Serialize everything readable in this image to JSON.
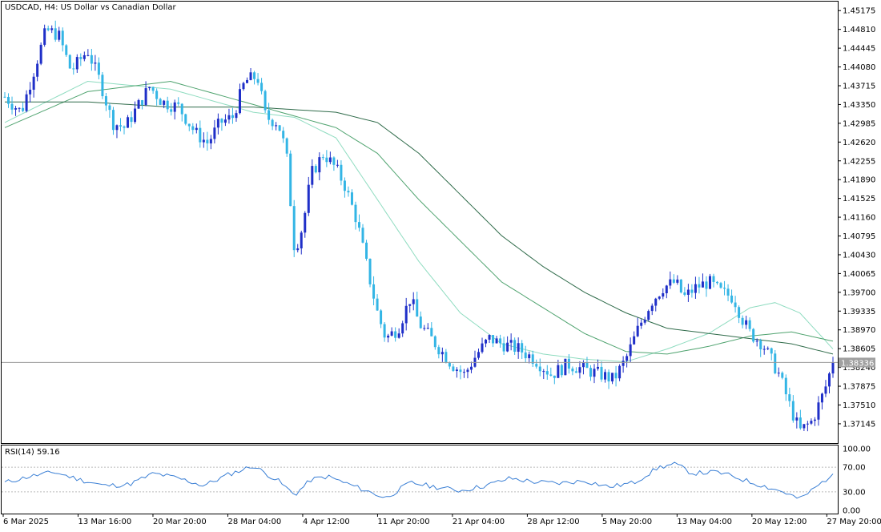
{
  "chart_data": {
    "type": "candlestick",
    "title": "USDCAD, H4:  US Dollar vs Canadian Dollar",
    "symbol": "USDCAD",
    "timeframe": "H4",
    "price_axis": {
      "ylim": [
        1.3677,
        1.4535
      ],
      "ticks": [
        "1.45175",
        "1.44810",
        "1.44445",
        "1.44080",
        "1.43715",
        "1.43350",
        "1.42985",
        "1.42620",
        "1.42255",
        "1.41890",
        "1.41525",
        "1.41160",
        "1.40795",
        "1.40430",
        "1.40065",
        "1.39700",
        "1.39335",
        "1.38970",
        "1.38605",
        "1.38240",
        "1.37875",
        "1.37510",
        "1.37145"
      ],
      "current_price": 1.38336,
      "current_price_label": "1.38336"
    },
    "time_axis": {
      "labels": [
        "6 Mar 2025",
        "13 Mar 16:00",
        "20 Mar 20:00",
        "28 Mar 04:00",
        "4 Apr 12:00",
        "11 Apr 20:00",
        "21 Apr 04:00",
        "28 Apr 12:00",
        "5 May 20:00",
        "13 May 04:00",
        "20 May 12:00",
        "27 May 20:00"
      ]
    },
    "price_series": [
      {
        "t": 0,
        "p": 1.435
      },
      {
        "t": 0.02,
        "p": 1.432
      },
      {
        "t": 0.035,
        "p": 1.44
      },
      {
        "t": 0.05,
        "p": 1.448
      },
      {
        "t": 0.065,
        "p": 1.447
      },
      {
        "t": 0.08,
        "p": 1.44
      },
      {
        "t": 0.1,
        "p": 1.444
      },
      {
        "t": 0.115,
        "p": 1.438
      },
      {
        "t": 0.13,
        "p": 1.43
      },
      {
        "t": 0.145,
        "p": 1.429
      },
      {
        "t": 0.16,
        "p": 1.433
      },
      {
        "t": 0.175,
        "p": 1.437
      },
      {
        "t": 0.19,
        "p": 1.434
      },
      {
        "t": 0.21,
        "p": 1.433
      },
      {
        "t": 0.23,
        "p": 1.428
      },
      {
        "t": 0.245,
        "p": 1.426
      },
      {
        "t": 0.26,
        "p": 1.43
      },
      {
        "t": 0.275,
        "p": 1.431
      },
      {
        "t": 0.29,
        "p": 1.438
      },
      {
        "t": 0.305,
        "p": 1.439
      },
      {
        "t": 0.315,
        "p": 1.431
      },
      {
        "t": 0.33,
        "p": 1.43
      },
      {
        "t": 0.34,
        "p": 1.424
      },
      {
        "t": 0.35,
        "p": 1.405
      },
      {
        "t": 0.36,
        "p": 1.41
      },
      {
        "t": 0.37,
        "p": 1.42
      },
      {
        "t": 0.385,
        "p": 1.424
      },
      {
        "t": 0.4,
        "p": 1.421
      },
      {
        "t": 0.41,
        "p": 1.418
      },
      {
        "t": 0.425,
        "p": 1.411
      },
      {
        "t": 0.44,
        "p": 1.4
      },
      {
        "t": 0.45,
        "p": 1.393
      },
      {
        "t": 0.46,
        "p": 1.388
      },
      {
        "t": 0.475,
        "p": 1.39
      },
      {
        "t": 0.49,
        "p": 1.396
      },
      {
        "t": 0.5,
        "p": 1.391
      },
      {
        "t": 0.52,
        "p": 1.387
      },
      {
        "t": 0.54,
        "p": 1.383
      },
      {
        "t": 0.555,
        "p": 1.381
      },
      {
        "t": 0.57,
        "p": 1.385
      },
      {
        "t": 0.585,
        "p": 1.388
      },
      {
        "t": 0.6,
        "p": 1.387
      },
      {
        "t": 0.62,
        "p": 1.386
      },
      {
        "t": 0.64,
        "p": 1.384
      },
      {
        "t": 0.66,
        "p": 1.381
      },
      {
        "t": 0.68,
        "p": 1.383
      },
      {
        "t": 0.7,
        "p": 1.382
      },
      {
        "t": 0.72,
        "p": 1.381
      },
      {
        "t": 0.735,
        "p": 1.38
      },
      {
        "t": 0.75,
        "p": 1.384
      },
      {
        "t": 0.765,
        "p": 1.39
      },
      {
        "t": 0.78,
        "p": 1.395
      },
      {
        "t": 0.795,
        "p": 1.398
      },
      {
        "t": 0.81,
        "p": 1.399
      },
      {
        "t": 0.82,
        "p": 1.396
      },
      {
        "t": 0.835,
        "p": 1.398
      },
      {
        "t": 0.85,
        "p": 1.399
      },
      {
        "t": 0.865,
        "p": 1.397
      },
      {
        "t": 0.88,
        "p": 1.396
      },
      {
        "t": 0.89,
        "p": 1.392
      },
      {
        "t": 0.9,
        "p": 1.389
      },
      {
        "t": 0.915,
        "p": 1.387
      },
      {
        "t": 0.925,
        "p": 1.384
      },
      {
        "t": 0.935,
        "p": 1.381
      },
      {
        "t": 0.95,
        "p": 1.374
      },
      {
        "t": 0.96,
        "p": 1.37
      },
      {
        "t": 0.975,
        "p": 1.372
      },
      {
        "t": 0.99,
        "p": 1.378
      },
      {
        "t": 1.0,
        "p": 1.3834
      }
    ],
    "moving_averages": [
      {
        "color": "#8fdcc0",
        "points": [
          {
            "t": 0,
            "p": 1.43
          },
          {
            "t": 0.1,
            "p": 1.438
          },
          {
            "t": 0.2,
            "p": 1.4365
          },
          {
            "t": 0.3,
            "p": 1.432
          },
          {
            "t": 0.35,
            "p": 1.431
          },
          {
            "t": 0.4,
            "p": 1.427
          },
          {
            "t": 0.45,
            "p": 1.415
          },
          {
            "t": 0.5,
            "p": 1.403
          },
          {
            "t": 0.55,
            "p": 1.393
          },
          {
            "t": 0.6,
            "p": 1.387
          },
          {
            "t": 0.65,
            "p": 1.385
          },
          {
            "t": 0.7,
            "p": 1.384
          },
          {
            "t": 0.75,
            "p": 1.3835
          },
          {
            "t": 0.8,
            "p": 1.386
          },
          {
            "t": 0.85,
            "p": 1.389
          },
          {
            "t": 0.9,
            "p": 1.394
          },
          {
            "t": 0.93,
            "p": 1.395
          },
          {
            "t": 0.96,
            "p": 1.393
          },
          {
            "t": 1.0,
            "p": 1.386
          }
        ]
      },
      {
        "color": "#4fa36f",
        "points": [
          {
            "t": 0,
            "p": 1.429
          },
          {
            "t": 0.1,
            "p": 1.436
          },
          {
            "t": 0.2,
            "p": 1.438
          },
          {
            "t": 0.3,
            "p": 1.4335
          },
          {
            "t": 0.4,
            "p": 1.429
          },
          {
            "t": 0.45,
            "p": 1.424
          },
          {
            "t": 0.5,
            "p": 1.415
          },
          {
            "t": 0.55,
            "p": 1.407
          },
          {
            "t": 0.6,
            "p": 1.399
          },
          {
            "t": 0.65,
            "p": 1.394
          },
          {
            "t": 0.7,
            "p": 1.389
          },
          {
            "t": 0.75,
            "p": 1.3855
          },
          {
            "t": 0.8,
            "p": 1.385
          },
          {
            "t": 0.85,
            "p": 1.3865
          },
          {
            "t": 0.9,
            "p": 1.3885
          },
          {
            "t": 0.95,
            "p": 1.3893
          },
          {
            "t": 1.0,
            "p": 1.3875
          }
        ]
      },
      {
        "color": "#2f6b4a",
        "points": [
          {
            "t": 0,
            "p": 1.434
          },
          {
            "t": 0.1,
            "p": 1.434
          },
          {
            "t": 0.2,
            "p": 1.433
          },
          {
            "t": 0.3,
            "p": 1.433
          },
          {
            "t": 0.4,
            "p": 1.432
          },
          {
            "t": 0.45,
            "p": 1.43
          },
          {
            "t": 0.5,
            "p": 1.424
          },
          {
            "t": 0.55,
            "p": 1.416
          },
          {
            "t": 0.6,
            "p": 1.408
          },
          {
            "t": 0.65,
            "p": 1.402
          },
          {
            "t": 0.7,
            "p": 1.397
          },
          {
            "t": 0.75,
            "p": 1.393
          },
          {
            "t": 0.8,
            "p": 1.39
          },
          {
            "t": 0.85,
            "p": 1.389
          },
          {
            "t": 0.9,
            "p": 1.388
          },
          {
            "t": 0.95,
            "p": 1.387
          },
          {
            "t": 1.0,
            "p": 1.385
          }
        ]
      }
    ],
    "rsi": {
      "label": "RSI(14) 59.16",
      "ylim": [
        0,
        100
      ],
      "ticks": [
        "100.00",
        "70.00",
        "30.00",
        "0.00"
      ],
      "levels": [
        70,
        30
      ],
      "color": "#3a7fd5",
      "points": [
        {
          "t": 0,
          "p": 45
        },
        {
          "t": 0.03,
          "p": 55
        },
        {
          "t": 0.06,
          "p": 62
        },
        {
          "t": 0.09,
          "p": 50
        },
        {
          "t": 0.12,
          "p": 40
        },
        {
          "t": 0.15,
          "p": 42
        },
        {
          "t": 0.18,
          "p": 60
        },
        {
          "t": 0.21,
          "p": 52
        },
        {
          "t": 0.24,
          "p": 40
        },
        {
          "t": 0.27,
          "p": 58
        },
        {
          "t": 0.3,
          "p": 72
        },
        {
          "t": 0.33,
          "p": 48
        },
        {
          "t": 0.35,
          "p": 25
        },
        {
          "t": 0.37,
          "p": 50
        },
        {
          "t": 0.39,
          "p": 55
        },
        {
          "t": 0.42,
          "p": 40
        },
        {
          "t": 0.44,
          "p": 30
        },
        {
          "t": 0.46,
          "p": 20
        },
        {
          "t": 0.49,
          "p": 45
        },
        {
          "t": 0.52,
          "p": 38
        },
        {
          "t": 0.55,
          "p": 32
        },
        {
          "t": 0.58,
          "p": 40
        },
        {
          "t": 0.61,
          "p": 52
        },
        {
          "t": 0.64,
          "p": 46
        },
        {
          "t": 0.67,
          "p": 44
        },
        {
          "t": 0.7,
          "p": 48
        },
        {
          "t": 0.73,
          "p": 38
        },
        {
          "t": 0.76,
          "p": 45
        },
        {
          "t": 0.79,
          "p": 70
        },
        {
          "t": 0.81,
          "p": 75
        },
        {
          "t": 0.83,
          "p": 60
        },
        {
          "t": 0.86,
          "p": 62
        },
        {
          "t": 0.88,
          "p": 55
        },
        {
          "t": 0.9,
          "p": 46
        },
        {
          "t": 0.92,
          "p": 38
        },
        {
          "t": 0.94,
          "p": 30
        },
        {
          "t": 0.96,
          "p": 18
        },
        {
          "t": 0.98,
          "p": 38
        },
        {
          "t": 1.0,
          "p": 59.16
        }
      ]
    },
    "colors": {
      "bull_candle": "#1f2fc8",
      "bear_candle": "#33b5e5",
      "grid_level": "#cfcfcf",
      "current_price_line": "#9a9a9a",
      "axis_text": "#000000"
    }
  }
}
